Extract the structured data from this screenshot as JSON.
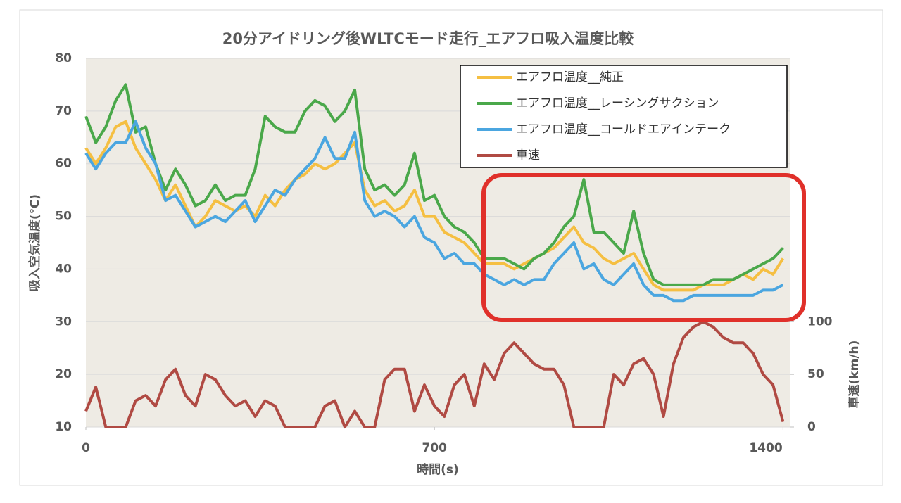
{
  "chart_data": {
    "type": "line",
    "title": "20分アイドリング後WLTCモード走行_エアフロ吸入温度比較",
    "x_label": "時間(s)",
    "y_label": "吸入空気温度(℃)",
    "y2_label": "車速(km/h)",
    "x": [
      0,
      20,
      40,
      60,
      80,
      100,
      120,
      140,
      160,
      180,
      200,
      220,
      240,
      260,
      280,
      300,
      320,
      340,
      360,
      380,
      400,
      420,
      440,
      460,
      480,
      500,
      520,
      540,
      560,
      580,
      600,
      620,
      640,
      660,
      680,
      700,
      720,
      740,
      760,
      780,
      800,
      820,
      840,
      860,
      880,
      900,
      920,
      940,
      960,
      980,
      1000,
      1020,
      1040,
      1060,
      1080,
      1100,
      1120,
      1140,
      1160,
      1180,
      1200,
      1220,
      1240,
      1260,
      1280,
      1300,
      1320,
      1340,
      1360,
      1380,
      1400
    ],
    "xlim": [
      0,
      1415
    ],
    "xticks": [
      0,
      700,
      1400
    ],
    "ylim": [
      10,
      80
    ],
    "yticks": [
      10,
      20,
      30,
      40,
      50,
      60,
      70,
      80
    ],
    "y2lim": [
      0,
      350
    ],
    "y2ticks": [
      0,
      50,
      100
    ],
    "grid": true,
    "legend": "upper right",
    "series": [
      {
        "name": "エアフロ温度__純正",
        "color": "#f5bf42",
        "values": [
          63,
          60,
          63,
          67,
          68,
          63,
          60,
          57,
          53,
          56,
          52,
          48,
          50,
          53,
          52,
          51,
          52,
          50,
          54,
          52,
          55,
          57,
          58,
          60,
          59,
          60,
          62,
          64,
          55,
          52,
          53,
          51,
          52,
          55,
          50,
          50,
          47,
          46,
          45,
          43,
          41,
          41,
          41,
          40,
          41,
          42,
          43,
          44,
          46,
          48,
          45,
          44,
          42,
          41,
          42,
          43,
          40,
          37,
          36,
          36,
          36,
          36,
          37,
          37,
          37,
          38,
          39,
          38,
          40,
          39,
          42
        ]
      },
      {
        "name": "エアフロ温度__レーシングサクション",
        "color": "#4aa84a",
        "values": [
          69,
          64,
          67,
          72,
          75,
          66,
          67,
          60,
          55,
          59,
          56,
          52,
          53,
          56,
          53,
          54,
          54,
          59,
          69,
          67,
          66,
          66,
          70,
          72,
          71,
          68,
          70,
          74,
          59,
          55,
          56,
          54,
          56,
          62,
          53,
          54,
          50,
          48,
          47,
          45,
          42,
          42,
          42,
          41,
          40,
          42,
          43,
          45,
          48,
          50,
          57,
          47,
          47,
          45,
          43,
          51,
          43,
          38,
          37,
          37,
          37,
          37,
          37,
          38,
          38,
          38,
          39,
          40,
          41,
          42,
          44
        ]
      },
      {
        "name": "エアフロ温度__コールドエアインテーク",
        "color": "#4ba6e0",
        "values": [
          62,
          59,
          62,
          64,
          64,
          68,
          63,
          60,
          53,
          54,
          51,
          48,
          49,
          50,
          49,
          51,
          53,
          49,
          52,
          55,
          54,
          57,
          59,
          61,
          65,
          61,
          61,
          66,
          53,
          50,
          51,
          50,
          48,
          50,
          46,
          45,
          42,
          43,
          41,
          41,
          39,
          38,
          37,
          38,
          37,
          38,
          38,
          41,
          43,
          45,
          40,
          41,
          38,
          37,
          39,
          41,
          37,
          35,
          35,
          34,
          34,
          35,
          35,
          35,
          35,
          35,
          35,
          35,
          36,
          36,
          37
        ]
      },
      {
        "name": "車速",
        "color": "#b04a43",
        "axis": "y2",
        "values": [
          15,
          38,
          0,
          0,
          0,
          25,
          30,
          20,
          45,
          55,
          30,
          20,
          50,
          45,
          30,
          20,
          25,
          10,
          25,
          20,
          0,
          0,
          0,
          0,
          20,
          25,
          0,
          15,
          0,
          0,
          45,
          55,
          55,
          15,
          40,
          20,
          10,
          40,
          50,
          20,
          60,
          45,
          70,
          80,
          70,
          60,
          55,
          55,
          40,
          0,
          0,
          0,
          0,
          50,
          40,
          60,
          65,
          50,
          10,
          60,
          85,
          95,
          100,
          95,
          85,
          80,
          80,
          70,
          50,
          40,
          5
        ]
      }
    ]
  }
}
